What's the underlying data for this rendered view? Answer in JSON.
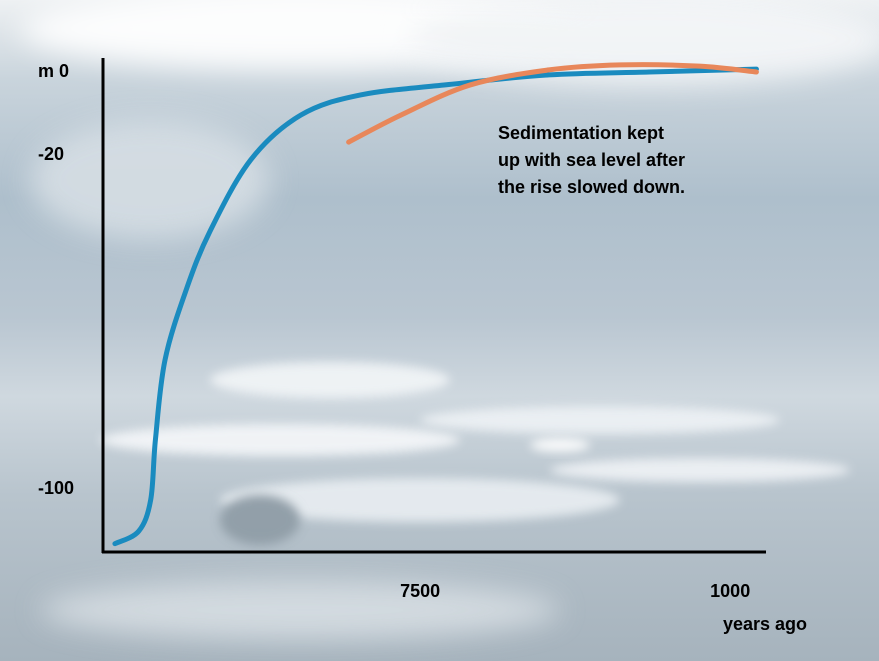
{
  "chart_data": {
    "type": "line",
    "xlabel": "years ago",
    "xlim": [
      14150,
      270
    ],
    "xticks": [
      7500,
      1000
    ],
    "ylim": [
      -115,
      0
    ],
    "yticks": [
      {
        "value": 0,
        "label": "m 0"
      },
      -20,
      -100
    ],
    "series": [
      {
        "color": "#1a8bbf",
        "x": [
          13900,
          13400,
          13150,
          13050,
          12850,
          12400,
          11900,
          11050,
          10000,
          8750,
          6900,
          4800,
          2700,
          450
        ],
        "values": [
          -113,
          -110,
          -102.5,
          -88,
          -69,
          -52,
          -38,
          -21,
          -10.3,
          -5.5,
          -3,
          -0.7,
          0,
          0.7
        ]
      },
      {
        "color": "#e8875a",
        "x": [
          9000,
          7900,
          6450,
          4800,
          3300,
          1650,
          450
        ],
        "values": [
          -16.8,
          -10.3,
          -3.1,
          0.5,
          1.7,
          1.4,
          0
        ]
      }
    ],
    "annotation": [
      "Sedimentation kept",
      "up with sea level after",
      "the rise slowed down."
    ],
    "annotation_color": "#e8875a"
  }
}
